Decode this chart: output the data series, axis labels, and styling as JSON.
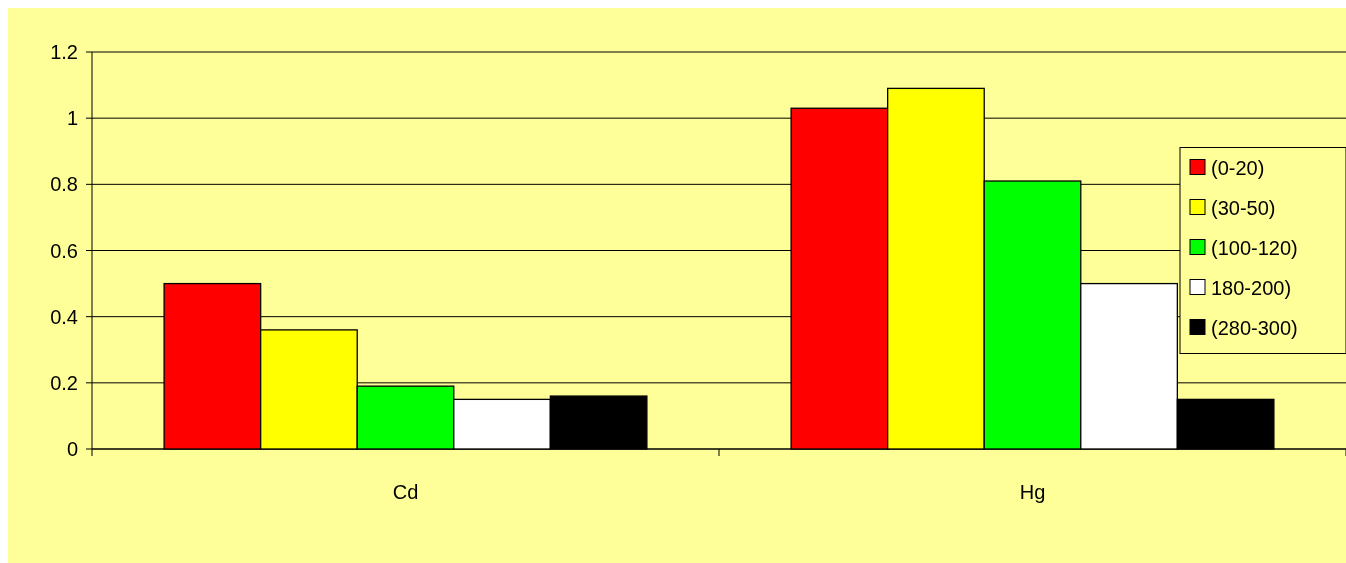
{
  "chart_data": {
    "type": "bar",
    "categories": [
      "Cd",
      "Hg"
    ],
    "series": [
      {
        "name": "(0-20)",
        "color": "#ff0000",
        "values": [
          0.5,
          1.03
        ]
      },
      {
        "name": "(30-50)",
        "color": "#ffff00",
        "values": [
          0.36,
          1.09
        ]
      },
      {
        "name": "(100-120)",
        "color": "#00ff00",
        "values": [
          0.19,
          0.81
        ]
      },
      {
        "name": "180-200)",
        "color": "#ffffff",
        "values": [
          0.15,
          0.5
        ]
      },
      {
        "name": "(280-300)",
        "color": "#000000",
        "values": [
          0.16,
          0.15
        ]
      }
    ],
    "ylim": [
      0,
      1.2
    ],
    "yticks": [
      0,
      0.2,
      0.4,
      0.6,
      0.8,
      1,
      1.2
    ],
    "grid": "y",
    "legend": "right"
  }
}
